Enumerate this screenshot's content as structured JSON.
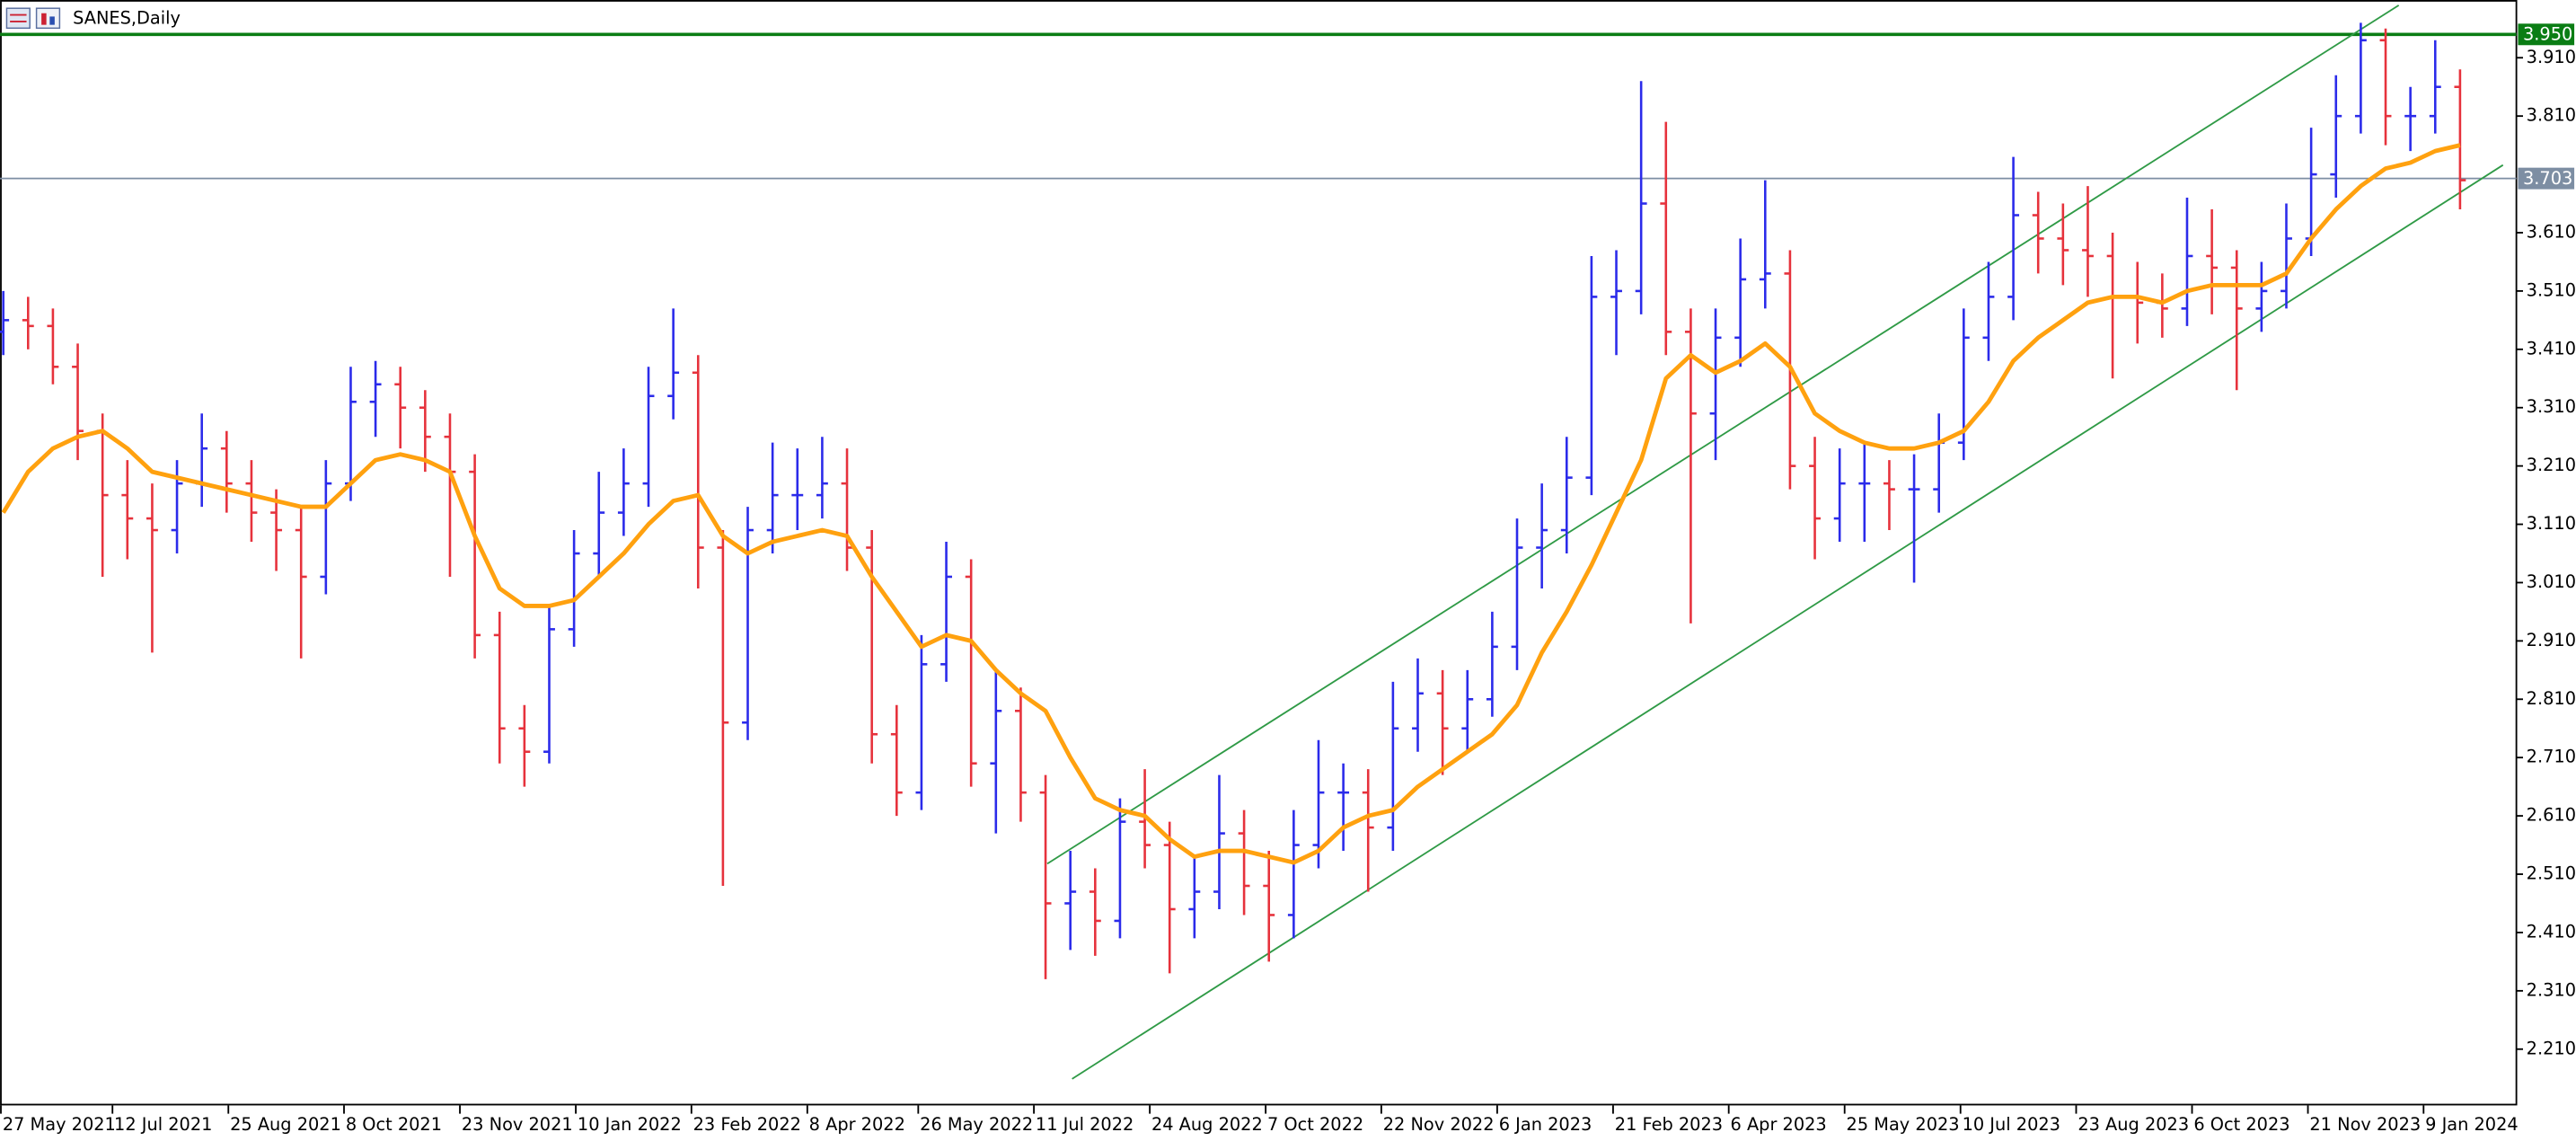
{
  "chart_data": {
    "type": "ohlc",
    "title": "SANES,Daily",
    "up_color": "#2b2bea",
    "down_color": "#e6323c",
    "ma_color": "#ffa10f",
    "xlim": [
      -0.13,
      101.27
    ],
    "ylim": [
      2.1135,
      4.009
    ],
    "xticks": [
      {
        "value": -0.13,
        "label": "27 May 2021"
      },
      {
        "value": 4.4,
        "label": "12 Jul 2021"
      },
      {
        "value": 9.07,
        "label": "25 Aug 2021"
      },
      {
        "value": 13.73,
        "label": "8 Oct 2021"
      },
      {
        "value": 18.4,
        "label": "23 Nov 2021"
      },
      {
        "value": 23.07,
        "label": "10 Jan 2022"
      },
      {
        "value": 27.73,
        "label": "23 Feb 2022"
      },
      {
        "value": 32.4,
        "label": "8 Apr 2022"
      },
      {
        "value": 36.87,
        "label": "26 May 2022"
      },
      {
        "value": 41.53,
        "label": "11 Jul 2022"
      },
      {
        "value": 46.2,
        "label": "24 Aug 2022"
      },
      {
        "value": 50.87,
        "label": "7 Oct 2022"
      },
      {
        "value": 55.53,
        "label": "22 Nov 2022"
      },
      {
        "value": 60.2,
        "label": "6 Jan 2023"
      },
      {
        "value": 64.87,
        "label": "21 Feb 2023"
      },
      {
        "value": 69.53,
        "label": "6 Apr 2023"
      },
      {
        "value": 74.2,
        "label": "25 May 2023"
      },
      {
        "value": 78.87,
        "label": "10 Jul 2023"
      },
      {
        "value": 83.53,
        "label": "23 Aug 2023"
      },
      {
        "value": 88.2,
        "label": "6 Oct 2023"
      },
      {
        "value": 92.87,
        "label": "21 Nov 2023"
      },
      {
        "value": 97.53,
        "label": "9 Jan 2024"
      }
    ],
    "yticks": [
      {
        "value": 3.91,
        "label": "3.910"
      },
      {
        "value": 3.81,
        "label": "3.810"
      },
      {
        "value": 3.61,
        "label": "3.610"
      },
      {
        "value": 3.51,
        "label": "3.510"
      },
      {
        "value": 3.41,
        "label": "3.410"
      },
      {
        "value": 3.31,
        "label": "3.310"
      },
      {
        "value": 3.21,
        "label": "3.210"
      },
      {
        "value": 3.11,
        "label": "3.110"
      },
      {
        "value": 3.01,
        "label": "3.010"
      },
      {
        "value": 2.91,
        "label": "2.910"
      },
      {
        "value": 2.81,
        "label": "2.810"
      },
      {
        "value": 2.71,
        "label": "2.710"
      },
      {
        "value": 2.61,
        "label": "2.610"
      },
      {
        "value": 2.51,
        "label": "2.510"
      },
      {
        "value": 2.41,
        "label": "2.410"
      },
      {
        "value": 2.31,
        "label": "2.310"
      },
      {
        "value": 2.21,
        "label": "2.210"
      }
    ],
    "levels": [
      {
        "value": 3.95,
        "label": "3.950",
        "color": "#0a7d14"
      },
      {
        "value": 3.703,
        "label": "3.703",
        "color": "#7d8ea3"
      }
    ],
    "trendlines": [
      {
        "x": [
          42.07,
          96.53
        ],
        "y": [
          2.528,
          4.0
        ],
        "color": "#2f9a46"
      },
      {
        "x": [
          43.07,
          100.73
        ],
        "y": [
          2.159,
          3.726
        ],
        "color": "#2f9a46"
      }
    ],
    "ohlc": [
      [
        3.44,
        3.51,
        3.4,
        3.46
      ],
      [
        3.46,
        3.5,
        3.41,
        3.45
      ],
      [
        3.45,
        3.48,
        3.35,
        3.38
      ],
      [
        3.38,
        3.42,
        3.22,
        3.27
      ],
      [
        3.27,
        3.3,
        3.02,
        3.16
      ],
      [
        3.16,
        3.22,
        3.05,
        3.12
      ],
      [
        3.12,
        3.18,
        2.89,
        3.1
      ],
      [
        3.1,
        3.22,
        3.06,
        3.18
      ],
      [
        3.18,
        3.3,
        3.14,
        3.24
      ],
      [
        3.24,
        3.27,
        3.13,
        3.18
      ],
      [
        3.18,
        3.22,
        3.08,
        3.13
      ],
      [
        3.13,
        3.17,
        3.03,
        3.1
      ],
      [
        3.1,
        3.14,
        2.88,
        3.02
      ],
      [
        3.02,
        3.22,
        2.99,
        3.18
      ],
      [
        3.18,
        3.38,
        3.15,
        3.32
      ],
      [
        3.32,
        3.39,
        3.26,
        3.35
      ],
      [
        3.35,
        3.38,
        3.24,
        3.31
      ],
      [
        3.31,
        3.34,
        3.2,
        3.26
      ],
      [
        3.26,
        3.3,
        3.02,
        3.2
      ],
      [
        3.2,
        3.23,
        2.88,
        2.92
      ],
      [
        2.92,
        2.96,
        2.7,
        2.76
      ],
      [
        2.76,
        2.8,
        2.66,
        2.72
      ],
      [
        2.72,
        2.97,
        2.7,
        2.93
      ],
      [
        2.93,
        3.1,
        2.9,
        3.06
      ],
      [
        3.06,
        3.2,
        3.02,
        3.13
      ],
      [
        3.13,
        3.24,
        3.09,
        3.18
      ],
      [
        3.18,
        3.38,
        3.14,
        3.33
      ],
      [
        3.33,
        3.48,
        3.29,
        3.37
      ],
      [
        3.37,
        3.4,
        3.0,
        3.07
      ],
      [
        3.07,
        3.1,
        2.49,
        2.77
      ],
      [
        2.77,
        3.14,
        2.74,
        3.1
      ],
      [
        3.1,
        3.25,
        3.06,
        3.16
      ],
      [
        3.16,
        3.24,
        3.1,
        3.16
      ],
      [
        3.16,
        3.26,
        3.12,
        3.18
      ],
      [
        3.18,
        3.24,
        3.03,
        3.07
      ],
      [
        3.07,
        3.1,
        2.7,
        2.75
      ],
      [
        2.75,
        2.8,
        2.61,
        2.65
      ],
      [
        2.65,
        2.92,
        2.62,
        2.87
      ],
      [
        2.87,
        3.08,
        2.84,
        3.02
      ],
      [
        3.02,
        3.05,
        2.66,
        2.7
      ],
      [
        2.7,
        2.86,
        2.58,
        2.79
      ],
      [
        2.79,
        2.83,
        2.6,
        2.65
      ],
      [
        2.65,
        2.68,
        2.33,
        2.46
      ],
      [
        2.46,
        2.55,
        2.38,
        2.48
      ],
      [
        2.48,
        2.52,
        2.37,
        2.43
      ],
      [
        2.43,
        2.64,
        2.4,
        2.6
      ],
      [
        2.6,
        2.69,
        2.52,
        2.56
      ],
      [
        2.56,
        2.6,
        2.34,
        2.45
      ],
      [
        2.45,
        2.54,
        2.4,
        2.48
      ],
      [
        2.48,
        2.68,
        2.45,
        2.58
      ],
      [
        2.58,
        2.62,
        2.44,
        2.49
      ],
      [
        2.49,
        2.55,
        2.36,
        2.44
      ],
      [
        2.44,
        2.62,
        2.4,
        2.56
      ],
      [
        2.56,
        2.74,
        2.52,
        2.65
      ],
      [
        2.65,
        2.7,
        2.55,
        2.65
      ],
      [
        2.65,
        2.69,
        2.48,
        2.59
      ],
      [
        2.59,
        2.84,
        2.55,
        2.76
      ],
      [
        2.76,
        2.88,
        2.72,
        2.82
      ],
      [
        2.82,
        2.86,
        2.68,
        2.76
      ],
      [
        2.76,
        2.86,
        2.72,
        2.81
      ],
      [
        2.81,
        2.96,
        2.78,
        2.9
      ],
      [
        2.9,
        3.12,
        2.86,
        3.07
      ],
      [
        3.07,
        3.18,
        3.0,
        3.1
      ],
      [
        3.1,
        3.26,
        3.06,
        3.19
      ],
      [
        3.19,
        3.57,
        3.16,
        3.5
      ],
      [
        3.5,
        3.58,
        3.4,
        3.51
      ],
      [
        3.51,
        3.87,
        3.47,
        3.66
      ],
      [
        3.66,
        3.8,
        3.4,
        3.44
      ],
      [
        3.44,
        3.48,
        2.94,
        3.3
      ],
      [
        3.3,
        3.48,
        3.22,
        3.43
      ],
      [
        3.43,
        3.6,
        3.38,
        3.53
      ],
      [
        3.53,
        3.7,
        3.48,
        3.54
      ],
      [
        3.54,
        3.58,
        3.17,
        3.21
      ],
      [
        3.21,
        3.26,
        3.05,
        3.12
      ],
      [
        3.12,
        3.24,
        3.08,
        3.18
      ],
      [
        3.18,
        3.25,
        3.08,
        3.18
      ],
      [
        3.18,
        3.22,
        3.1,
        3.17
      ],
      [
        3.17,
        3.23,
        3.01,
        3.17
      ],
      [
        3.17,
        3.3,
        3.13,
        3.25
      ],
      [
        3.25,
        3.48,
        3.22,
        3.43
      ],
      [
        3.43,
        3.56,
        3.39,
        3.5
      ],
      [
        3.5,
        3.74,
        3.46,
        3.64
      ],
      [
        3.64,
        3.68,
        3.54,
        3.6
      ],
      [
        3.6,
        3.66,
        3.52,
        3.58
      ],
      [
        3.58,
        3.69,
        3.5,
        3.57
      ],
      [
        3.57,
        3.61,
        3.36,
        3.5
      ],
      [
        3.5,
        3.56,
        3.42,
        3.49
      ],
      [
        3.49,
        3.54,
        3.43,
        3.48
      ],
      [
        3.48,
        3.67,
        3.45,
        3.57
      ],
      [
        3.57,
        3.65,
        3.47,
        3.55
      ],
      [
        3.55,
        3.58,
        3.34,
        3.48
      ],
      [
        3.48,
        3.56,
        3.44,
        3.51
      ],
      [
        3.51,
        3.66,
        3.48,
        3.6
      ],
      [
        3.6,
        3.79,
        3.57,
        3.71
      ],
      [
        3.71,
        3.88,
        3.67,
        3.81
      ],
      [
        3.81,
        3.97,
        3.78,
        3.94
      ],
      [
        3.94,
        3.96,
        3.76,
        3.81
      ],
      [
        3.81,
        3.86,
        3.75,
        3.81
      ],
      [
        3.81,
        3.94,
        3.78,
        3.86
      ],
      [
        3.86,
        3.89,
        3.65,
        3.7
      ]
    ],
    "ma": [
      3.13,
      3.2,
      3.24,
      3.26,
      3.27,
      3.24,
      3.2,
      3.19,
      3.18,
      3.17,
      3.16,
      3.15,
      3.14,
      3.14,
      3.18,
      3.22,
      3.23,
      3.22,
      3.2,
      3.09,
      3.0,
      2.97,
      2.97,
      2.98,
      3.02,
      3.06,
      3.11,
      3.15,
      3.16,
      3.09,
      3.06,
      3.08,
      3.09,
      3.1,
      3.09,
      3.02,
      2.96,
      2.9,
      2.92,
      2.91,
      2.86,
      2.82,
      2.79,
      2.71,
      2.64,
      2.62,
      2.61,
      2.57,
      2.54,
      2.55,
      2.55,
      2.54,
      2.53,
      2.55,
      2.59,
      2.61,
      2.62,
      2.66,
      2.69,
      2.72,
      2.75,
      2.8,
      2.89,
      2.96,
      3.04,
      3.13,
      3.22,
      3.36,
      3.4,
      3.37,
      3.39,
      3.42,
      3.38,
      3.3,
      3.27,
      3.25,
      3.24,
      3.24,
      3.25,
      3.27,
      3.32,
      3.39,
      3.43,
      3.46,
      3.49,
      3.5,
      3.5,
      3.49,
      3.51,
      3.52,
      3.52,
      3.52,
      3.54,
      3.6,
      3.65,
      3.69,
      3.72,
      3.73,
      3.75,
      3.76
    ]
  }
}
